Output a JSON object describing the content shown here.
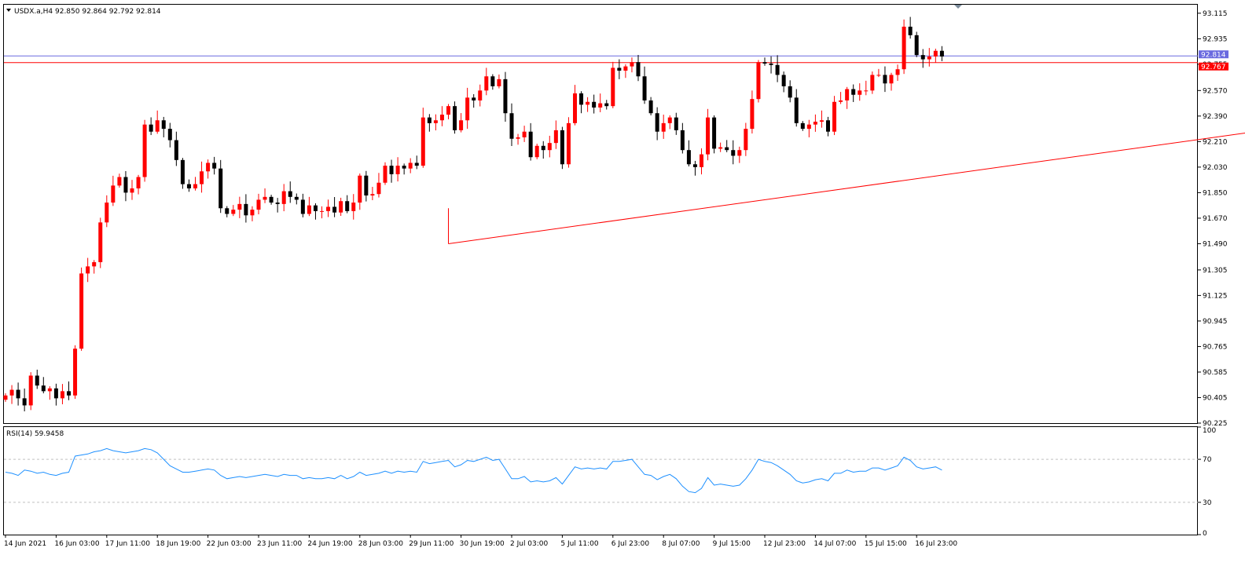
{
  "header": {
    "symbol_line": "USDX.a,H4  92.850 92.864 92.792 92.814",
    "indicator_line": "RSI(14) 59.9458"
  },
  "colors": {
    "bull": "#ff0000",
    "bear": "#000000",
    "rsi": "#1e90ff",
    "resistance": "#ff0000",
    "bid": "#6a6adf",
    "trendline": "#ff0000",
    "frame": "#000000",
    "grid_dash": "#c0c0c0"
  },
  "chart_data": {
    "type": "candlestick",
    "symbol": "USDX.a",
    "timeframe": "H4",
    "ohlc_header": {
      "open": 92.85,
      "high": 92.864,
      "low": 92.792,
      "close": 92.814
    },
    "y_range": [
      90.225,
      93.175
    ],
    "y_ticks": [
      "93.115",
      "92.935",
      "92.755",
      "92.570",
      "92.390",
      "92.210",
      "92.030",
      "91.850",
      "91.670",
      "91.490",
      "91.305",
      "91.125",
      "90.945",
      "90.765",
      "90.585",
      "90.405",
      "90.225"
    ],
    "x_labels": [
      "14 Jun 2021",
      "16 Jun 03:00",
      "17 Jun 11:00",
      "18 Jun 19:00",
      "22 Jun 03:00",
      "23 Jun 11:00",
      "24 Jun 19:00",
      "28 Jun 03:00",
      "29 Jun 11:00",
      "30 Jun 19:00",
      "2 Jul 03:00",
      "5 Jul 11:00",
      "6 Jul 23:00",
      "8 Jul 07:00",
      "9 Jul 15:00",
      "12 Jul 23:00",
      "14 Jul 07:00",
      "15 Jul 15:00",
      "16 Jul 23:00"
    ],
    "price_labels": {
      "bid": {
        "text": "92.814",
        "value": 92.814
      },
      "resistance": {
        "text": "92.767",
        "value": 92.767
      }
    },
    "trendline": {
      "from_bar": 70,
      "from_price": 91.49,
      "to_bar": 233,
      "to_price": 92.5
    },
    "closes": [
      90.42,
      90.46,
      90.4,
      90.35,
      90.56,
      90.49,
      90.45,
      90.47,
      90.4,
      90.45,
      90.42,
      90.75,
      91.28,
      91.33,
      91.36,
      91.64,
      91.78,
      91.9,
      91.96,
      91.85,
      91.88,
      91.96,
      92.33,
      92.28,
      92.36,
      92.3,
      92.22,
      92.08,
      91.91,
      91.88,
      91.91,
      92.0,
      92.06,
      92.02,
      91.74,
      91.7,
      91.73,
      91.77,
      91.69,
      91.73,
      91.8,
      91.82,
      91.78,
      91.77,
      91.86,
      91.82,
      91.8,
      91.7,
      91.76,
      91.72,
      91.72,
      91.75,
      91.71,
      91.79,
      91.72,
      91.78,
      91.97,
      91.83,
      91.84,
      91.92,
      92.04,
      91.98,
      92.04,
      92.02,
      92.06,
      92.04,
      92.38,
      92.34,
      92.36,
      92.4,
      92.46,
      92.29,
      92.36,
      92.52,
      92.5,
      92.57,
      92.67,
      92.6,
      92.65,
      92.41,
      92.23,
      92.24,
      92.28,
      92.1,
      92.18,
      92.15,
      92.2,
      92.29,
      92.05,
      92.34,
      92.55,
      92.47,
      92.49,
      92.45,
      92.48,
      92.46,
      92.73,
      92.71,
      92.74,
      92.77,
      92.67,
      92.5,
      92.41,
      92.28,
      92.34,
      92.38,
      92.29,
      92.15,
      92.05,
      92.03,
      92.12,
      92.38,
      92.16,
      92.17,
      92.15,
      92.11,
      92.15,
      92.3,
      92.51,
      92.77,
      92.76,
      92.75,
      92.68,
      92.6,
      92.52,
      92.34,
      92.3,
      92.33,
      92.35,
      92.36,
      92.28,
      92.49,
      92.5,
      92.58,
      92.54,
      92.57,
      92.57,
      92.68,
      92.68,
      92.62,
      92.68,
      92.72,
      93.02,
      92.96,
      92.82,
      92.79,
      92.81,
      92.85,
      92.81
    ],
    "rsi": {
      "name": "RSI(14)",
      "value": 59.9458,
      "range": [
        0,
        100
      ],
      "ticks": [
        "100",
        "70",
        "30",
        "0"
      ],
      "levels": [
        70,
        30
      ],
      "values": [
        58,
        57,
        55,
        60,
        59,
        57,
        58,
        56,
        55,
        57,
        58,
        73,
        74,
        75,
        77,
        78,
        80,
        78,
        77,
        76,
        77,
        78,
        80,
        79,
        76,
        70,
        64,
        61,
        58,
        58,
        59,
        60,
        61,
        60,
        55,
        52,
        53,
        54,
        53,
        54,
        55,
        56,
        55,
        54,
        56,
        55,
        55,
        52,
        53,
        52,
        52,
        53,
        52,
        55,
        52,
        54,
        58,
        55,
        56,
        57,
        59,
        57,
        59,
        58,
        59,
        58,
        68,
        66,
        67,
        68,
        69,
        63,
        65,
        69,
        68,
        70,
        72,
        69,
        70,
        61,
        52,
        52,
        54,
        49,
        50,
        49,
        50,
        53,
        47,
        55,
        63,
        61,
        62,
        61,
        62,
        61,
        68,
        68,
        69,
        70,
        63,
        56,
        55,
        51,
        54,
        56,
        52,
        45,
        40,
        39,
        43,
        53,
        46,
        47,
        46,
        45,
        46,
        52,
        60,
        70,
        68,
        67,
        64,
        60,
        56,
        50,
        48,
        49,
        51,
        52,
        50,
        57,
        57,
        60,
        58,
        59,
        59,
        62,
        62,
        60,
        62,
        64,
        72,
        69,
        63,
        61,
        62,
        63,
        60
      ]
    }
  }
}
